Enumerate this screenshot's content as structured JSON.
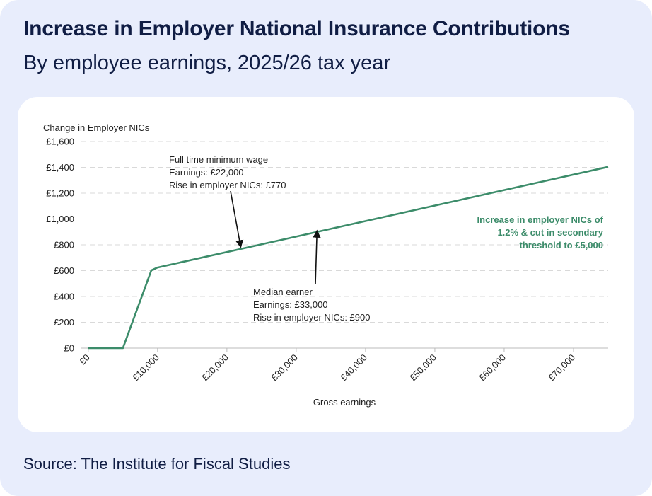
{
  "header": {
    "title": "Increase in Employer National Insurance Contributions",
    "subtitle": "By employee earnings, 2025/26 tax year"
  },
  "footer": {
    "source": "Source: The Institute for Fiscal Studies"
  },
  "colors": {
    "line": "#3c8c6a",
    "text": "#101d44",
    "card_bg": "#e8edfc"
  },
  "chart_data": {
    "type": "line",
    "title": "",
    "xlabel": "Gross earnings",
    "ylabel": "Change in Employer NICs",
    "xlim": [
      -1000,
      75000
    ],
    "ylim": [
      0,
      1600
    ],
    "x_ticks": [
      0,
      10000,
      20000,
      30000,
      40000,
      50000,
      60000,
      70000
    ],
    "x_tick_labels": [
      "£0",
      "£10,000",
      "£20,000",
      "£30,000",
      "£40,000",
      "£50,000",
      "£60,000",
      "£70,000"
    ],
    "y_ticks": [
      0,
      200,
      400,
      600,
      800,
      1000,
      1200,
      1400,
      1600
    ],
    "y_tick_labels": [
      "£0",
      "£200",
      "£400",
      "£600",
      "£800",
      "£1,000",
      "£1,200",
      "£1,400",
      "£1,600"
    ],
    "grid": "horizontal dashed",
    "series": [
      {
        "name": "Increase in employer NICs of 1.2% & cut in secondary threshold to £5,000",
        "x": [
          0,
          5000,
          9100,
          10000,
          75000
        ],
        "y": [
          0,
          0,
          602,
          624,
          1404
        ]
      }
    ],
    "series_label_lines": [
      "Increase in employer NICs of",
      "1.2% & cut in secondary",
      "threshold to £5,000"
    ],
    "annotations": [
      {
        "lines": [
          "Full time minimum wage",
          "Earnings: £22,000",
          "Rise in employer NICs: £770"
        ],
        "x": 22000,
        "y": 770
      },
      {
        "lines": [
          "Median earner",
          "Earnings: £33,000",
          "Rise in employer NICs: £900"
        ],
        "x": 33000,
        "y": 900
      }
    ]
  }
}
